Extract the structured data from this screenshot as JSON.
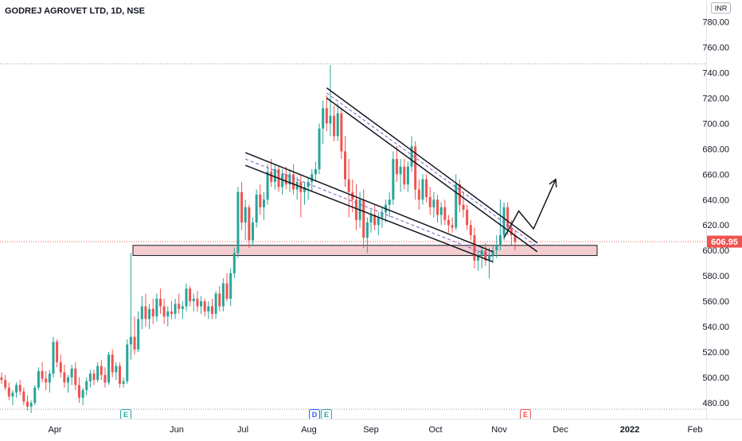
{
  "header": {
    "symbol_title": "GODREJ AGROVET LTD, 1D, NSE",
    "currency": "INR"
  },
  "colors": {
    "up": "#26a69a",
    "down": "#ef5350",
    "last_price_line": "#ef5350",
    "support_zone_fill": "#f4cdd0",
    "trendline": "#131722",
    "midline": "#7e57c2",
    "grid": "#9598a1"
  },
  "last_price": {
    "value": 606.95,
    "label": "606.95"
  },
  "chart_data": {
    "type": "candlestick",
    "title": "GODREJ AGROVET LTD, 1D, NSE",
    "ylim": [
      470,
      790
    ],
    "y_ticks": [
      "480.00",
      "500.00",
      "520.00",
      "540.00",
      "560.00",
      "580.00",
      "600.00",
      "620.00",
      "640.00",
      "660.00",
      "680.00",
      "700.00",
      "720.00",
      "740.00",
      "760.00",
      "780.00"
    ],
    "x_ticks": [
      "Apr",
      "Jun",
      "Jul",
      "Aug",
      "Sep",
      "Oct",
      "Nov",
      "Dec",
      "2022",
      "Feb"
    ],
    "horizontal_levels": [
      747,
      475
    ],
    "support_zone": {
      "from": 596,
      "to": 604
    },
    "events": [
      {
        "label": "E",
        "month": "May",
        "color": "#26a69a"
      },
      {
        "label": "D",
        "month": "Aug",
        "color": "#2962ff"
      },
      {
        "label": "E",
        "month": "Aug",
        "color": "#26a69a"
      },
      {
        "label": "E",
        "month": "Nov",
        "color": "#ef5350"
      }
    ],
    "series": [
      {
        "key": "ohlc",
        "values": [
          [
            500,
            504,
            495,
            498
          ],
          [
            498,
            502,
            490,
            492
          ],
          [
            492,
            496,
            482,
            485
          ],
          [
            485,
            490,
            478,
            488
          ],
          [
            488,
            496,
            484,
            494
          ],
          [
            494,
            498,
            486,
            489
          ],
          [
            489,
            492,
            478,
            481
          ],
          [
            481,
            486,
            474,
            477
          ],
          [
            477,
            482,
            472,
            480
          ],
          [
            480,
            494,
            478,
            492
          ],
          [
            492,
            508,
            490,
            505
          ],
          [
            505,
            512,
            496,
            499
          ],
          [
            499,
            505,
            490,
            496
          ],
          [
            496,
            506,
            488,
            503
          ],
          [
            503,
            532,
            500,
            528
          ],
          [
            528,
            530,
            508,
            512
          ],
          [
            512,
            518,
            500,
            504
          ],
          [
            504,
            510,
            492,
            496
          ],
          [
            496,
            502,
            488,
            500
          ],
          [
            500,
            510,
            494,
            507
          ],
          [
            507,
            512,
            490,
            494
          ],
          [
            494,
            500,
            480,
            484
          ],
          [
            484,
            492,
            478,
            490
          ],
          [
            490,
            500,
            486,
            497
          ],
          [
            497,
            506,
            492,
            503
          ],
          [
            503,
            506,
            494,
            498
          ],
          [
            498,
            512,
            496,
            509
          ],
          [
            509,
            514,
            498,
            502
          ],
          [
            502,
            508,
            492,
            496
          ],
          [
            496,
            520,
            494,
            518
          ],
          [
            518,
            522,
            500,
            504
          ],
          [
            504,
            512,
            498,
            509
          ],
          [
            509,
            512,
            492,
            495
          ],
          [
            495,
            500,
            492,
            497
          ],
          [
            497,
            530,
            495,
            526
          ],
          [
            526,
            598,
            514,
            532
          ],
          [
            532,
            548,
            518,
            522
          ],
          [
            522,
            552,
            520,
            546
          ],
          [
            546,
            564,
            538,
            556
          ],
          [
            556,
            566,
            540,
            546
          ],
          [
            546,
            558,
            538,
            554
          ],
          [
            554,
            562,
            542,
            548
          ],
          [
            548,
            566,
            544,
            562
          ],
          [
            562,
            570,
            550,
            556
          ],
          [
            556,
            562,
            542,
            548
          ],
          [
            548,
            556,
            540,
            552
          ],
          [
            552,
            560,
            546,
            550
          ],
          [
            550,
            562,
            546,
            558
          ],
          [
            558,
            566,
            550,
            554
          ],
          [
            554,
            560,
            546,
            556
          ],
          [
            556,
            574,
            552,
            570
          ],
          [
            570,
            572,
            556,
            560
          ],
          [
            560,
            566,
            552,
            562
          ],
          [
            562,
            568,
            552,
            556
          ],
          [
            556,
            564,
            550,
            560
          ],
          [
            560,
            562,
            548,
            552
          ],
          [
            552,
            560,
            546,
            556
          ],
          [
            556,
            562,
            546,
            550
          ],
          [
            550,
            568,
            546,
            566
          ],
          [
            566,
            572,
            552,
            556
          ],
          [
            556,
            578,
            552,
            574
          ],
          [
            574,
            582,
            560,
            562
          ],
          [
            562,
            586,
            556,
            582
          ],
          [
            582,
            602,
            578,
            598
          ],
          [
            598,
            650,
            594,
            646
          ],
          [
            646,
            654,
            616,
            622
          ],
          [
            622,
            640,
            608,
            634
          ],
          [
            634,
            636,
            602,
            608
          ],
          [
            608,
            626,
            604,
            622
          ],
          [
            622,
            648,
            618,
            644
          ],
          [
            644,
            652,
            628,
            634
          ],
          [
            634,
            646,
            624,
            640
          ],
          [
            640,
            668,
            636,
            662
          ],
          [
            662,
            672,
            650,
            654
          ],
          [
            654,
            668,
            648,
            664
          ],
          [
            664,
            666,
            646,
            650
          ],
          [
            650,
            664,
            644,
            660
          ],
          [
            660,
            666,
            648,
            652
          ],
          [
            652,
            664,
            646,
            660
          ],
          [
            660,
            668,
            644,
            648
          ],
          [
            648,
            658,
            640,
            654
          ],
          [
            654,
            660,
            626,
            646
          ],
          [
            646,
            654,
            636,
            650
          ],
          [
            650,
            658,
            640,
            654
          ],
          [
            654,
            664,
            646,
            660
          ],
          [
            660,
            670,
            654,
            664
          ],
          [
            664,
            700,
            660,
            696
          ],
          [
            696,
            718,
            684,
            712
          ],
          [
            712,
            722,
            694,
            700
          ],
          [
            700,
            746,
            690,
            706
          ],
          [
            706,
            714,
            686,
            690
          ],
          [
            690,
            716,
            686,
            708
          ],
          [
            708,
            712,
            672,
            678
          ],
          [
            678,
            690,
            650,
            656
          ],
          [
            656,
            672,
            626,
            646
          ],
          [
            646,
            656,
            630,
            640
          ],
          [
            640,
            652,
            616,
            624
          ],
          [
            624,
            646,
            618,
            640
          ],
          [
            640,
            648,
            602,
            610
          ],
          [
            610,
            626,
            598,
            622
          ],
          [
            622,
            632,
            614,
            628
          ],
          [
            628,
            636,
            616,
            620
          ],
          [
            620,
            630,
            612,
            626
          ],
          [
            626,
            634,
            618,
            630
          ],
          [
            630,
            640,
            622,
            636
          ],
          [
            636,
            646,
            626,
            640
          ],
          [
            640,
            678,
            636,
            672
          ],
          [
            672,
            682,
            654,
            660
          ],
          [
            660,
            672,
            646,
            666
          ],
          [
            666,
            672,
            648,
            652
          ],
          [
            652,
            670,
            646,
            666
          ],
          [
            666,
            690,
            662,
            682
          ],
          [
            682,
            686,
            640,
            648
          ],
          [
            648,
            656,
            632,
            640
          ],
          [
            640,
            660,
            636,
            656
          ],
          [
            656,
            660,
            638,
            642
          ],
          [
            642,
            650,
            628,
            634
          ],
          [
            634,
            646,
            626,
            640
          ],
          [
            640,
            644,
            622,
            628
          ],
          [
            628,
            638,
            620,
            634
          ],
          [
            634,
            640,
            620,
            624
          ],
          [
            624,
            628,
            614,
            620
          ],
          [
            620,
            626,
            614,
            618
          ],
          [
            618,
            660,
            616,
            652
          ],
          [
            652,
            656,
            630,
            636
          ],
          [
            636,
            646,
            626,
            632
          ],
          [
            632,
            636,
            616,
            620
          ],
          [
            620,
            624,
            608,
            612
          ],
          [
            612,
            618,
            586,
            592
          ],
          [
            592,
            600,
            584,
            596
          ],
          [
            596,
            604,
            586,
            600
          ],
          [
            600,
            606,
            588,
            592
          ],
          [
            592,
            602,
            578,
            596
          ],
          [
            596,
            604,
            590,
            600
          ],
          [
            600,
            612,
            594,
            604
          ],
          [
            604,
            640,
            600,
            612
          ],
          [
            612,
            638,
            608,
            634
          ],
          [
            634,
            638,
            612,
            618
          ],
          [
            618,
            624,
            604,
            612
          ],
          [
            612,
            616,
            600,
            606.95
          ]
        ]
      }
    ],
    "drawings": {
      "upper_channel": {
        "top": [
          [
            88,
            728
          ],
          [
            145,
            606
          ]
        ],
        "bottom": [
          [
            88,
            720
          ],
          [
            145,
            599
          ]
        ],
        "mid": [
          [
            88,
            724
          ],
          [
            145,
            603
          ]
        ]
      },
      "lower_channel": {
        "top": [
          [
            66,
            677
          ],
          [
            133,
            599
          ]
        ],
        "bottom": [
          [
            66,
            667
          ],
          [
            133,
            591
          ]
        ],
        "mid": [
          [
            66,
            672
          ],
          [
            133,
            595
          ]
        ]
      },
      "projection_arrow": [
        [
          136,
          610
        ],
        [
          140,
          631
        ],
        [
          144,
          617
        ],
        [
          150,
          656
        ]
      ]
    }
  }
}
